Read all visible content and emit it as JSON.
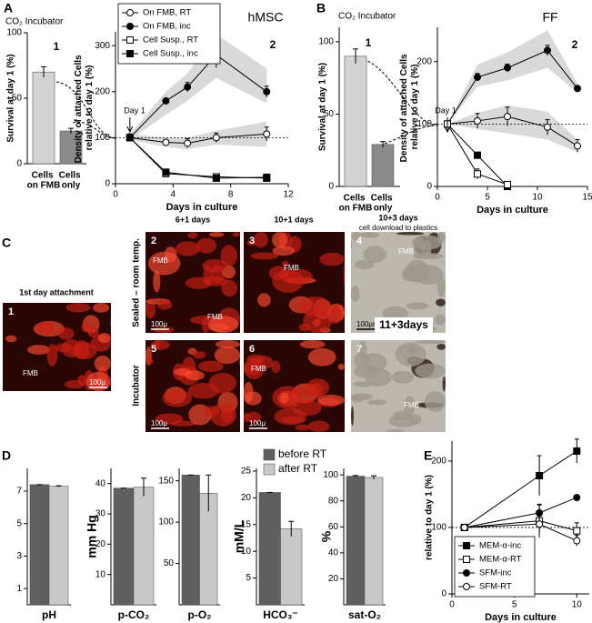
{
  "panel_labels": [
    "A",
    "B",
    "C",
    "D",
    "E"
  ],
  "chart_data": [
    {
      "type": "bar",
      "title": "CO₂ Incubator",
      "label": "1",
      "categories": [
        "Cells on FMB",
        "Cells only"
      ],
      "values": [
        70,
        25
      ],
      "errors": [
        4,
        2
      ],
      "colors": [
        "#d3d3d3",
        "#8a8a8a"
      ],
      "ylabel": "Survival at day 1 (%)",
      "ylim": [
        0,
        100
      ],
      "yticks": [
        0,
        50,
        100
      ]
    },
    {
      "type": "line",
      "title": "hMSC",
      "label": "2",
      "annotation": "Day 1",
      "xlabel": "Days in culture",
      "ylabel": "Density of attached Cells relative to day 1 (%)",
      "xlim": [
        0,
        12
      ],
      "xticks": [
        0,
        4,
        8,
        12
      ],
      "ylim": [
        0,
        330
      ],
      "yticks": [
        0,
        100,
        200,
        300
      ],
      "reference_line": 100,
      "legend": "top-left",
      "band_color": "#d9d9d9",
      "series": [
        {
          "name": "On FMB, RT",
          "marker": "open-circle",
          "color": "#000000",
          "x": [
            1,
            3.5,
            5,
            7,
            10.5
          ],
          "values": [
            100,
            90,
            88,
            100,
            108
          ],
          "errors": [
            8,
            5,
            10,
            10,
            15
          ],
          "band_low": [
            95,
            80,
            75,
            85,
            80
          ],
          "band_high": [
            108,
            100,
            100,
            115,
            135
          ]
        },
        {
          "name": "On FMB, inc",
          "marker": "filled-circle",
          "color": "#000000",
          "x": [
            1,
            3.5,
            5,
            7,
            10.5
          ],
          "values": [
            100,
            180,
            210,
            280,
            200
          ],
          "errors": [
            8,
            5,
            10,
            28,
            12
          ],
          "band_low": [
            95,
            150,
            180,
            230,
            175
          ],
          "band_high": [
            108,
            200,
            240,
            325,
            250
          ]
        },
        {
          "name": "Cell Susp., RT",
          "marker": "open-square",
          "color": "#000000",
          "x": [
            1,
            3.5,
            7,
            10.5
          ],
          "values": [
            100,
            22,
            15,
            12
          ],
          "errors": [
            8,
            3,
            3,
            3
          ]
        },
        {
          "name": "Cell Susp., inc",
          "marker": "filled-square",
          "color": "#000000",
          "x": [
            1,
            3.5,
            7,
            10.5
          ],
          "values": [
            100,
            25,
            12,
            14
          ],
          "errors": [
            8,
            3,
            3,
            3
          ]
        }
      ]
    },
    {
      "type": "bar",
      "title": "CO₂ Incubator",
      "label": "1",
      "categories": [
        "Cells on FMB",
        "Cells only"
      ],
      "values": [
        90,
        29
      ],
      "errors": [
        5,
        2
      ],
      "colors": [
        "#d3d3d3",
        "#8a8a8a"
      ],
      "ylabel": "Survival at day 1 (%)",
      "ylim": [
        0,
        110
      ],
      "yticks": [
        0,
        50,
        100
      ]
    },
    {
      "type": "line",
      "title": "FF",
      "label": "2",
      "annotation": "Day 1",
      "xlabel": "Days in culture",
      "ylabel": "Density of attached Cells relative to day 1 (%)",
      "xlim": [
        0,
        15
      ],
      "xticks": [
        0,
        5,
        10,
        15
      ],
      "ylim": [
        0,
        255
      ],
      "yticks": [
        0,
        100,
        200
      ],
      "reference_line": 100,
      "band_color": "#d9d9d9",
      "series": [
        {
          "marker": "filled-circle",
          "color": "#000000",
          "x": [
            1,
            4,
            7,
            11,
            14
          ],
          "values": [
            100,
            175,
            190,
            218,
            157
          ],
          "errors": [
            3,
            6,
            6,
            8,
            4
          ],
          "band_low": [
            100,
            160,
            170,
            190,
            150
          ],
          "band_high": [
            100,
            195,
            215,
            250,
            165
          ]
        },
        {
          "marker": "open-circle",
          "color": "#000000",
          "x": [
            1,
            4,
            7,
            11,
            14
          ],
          "values": [
            100,
            105,
            112,
            95,
            65
          ],
          "errors": [
            3,
            12,
            15,
            12,
            10
          ],
          "band_low": [
            100,
            92,
            85,
            75,
            55
          ],
          "band_high": [
            100,
            118,
            130,
            120,
            75
          ]
        },
        {
          "marker": "filled-square",
          "color": "#000000",
          "x": [
            1,
            4,
            7
          ],
          "values": [
            100,
            50,
            0
          ],
          "errors": [
            3,
            5,
            0
          ]
        },
        {
          "marker": "open-square",
          "color": "#000000",
          "x": [
            1,
            4,
            7
          ],
          "values": [
            100,
            20,
            3
          ],
          "errors": [
            3,
            8,
            2
          ]
        }
      ]
    },
    {
      "type": "bar",
      "xlabel": "pH",
      "categories": [
        null,
        null
      ],
      "values": [
        7.4,
        7.3
      ],
      "errors": [
        0,
        0.03
      ],
      "colors": [
        "#5f5f5f",
        "#c8c8c8"
      ],
      "ylim": [
        0,
        8.4
      ],
      "yticks": [
        1,
        3,
        5,
        7
      ]
    },
    {
      "type": "bar",
      "xlabel": "p-CO₂",
      "ylabel": "mm Hg",
      "categories": [
        null,
        null
      ],
      "values": [
        38.5,
        38.8
      ],
      "errors": [
        0,
        3
      ],
      "colors": [
        "#5f5f5f",
        "#c8c8c8"
      ],
      "ylim": [
        0,
        45
      ],
      "yticks": [
        10,
        20,
        30,
        40
      ]
    },
    {
      "type": "bar",
      "xlabel": "p-O₂",
      "categories": [
        null,
        null
      ],
      "values": [
        157,
        135
      ],
      "errors": [
        0,
        22
      ],
      "colors": [
        "#5f5f5f",
        "#c8c8c8"
      ],
      "ylim": [
        0,
        165
      ],
      "yticks": [
        50,
        100,
        150
      ]
    },
    {
      "type": "bar",
      "xlabel": "HCO₃⁻",
      "ylabel": "mM/L",
      "categories": [
        null,
        null
      ],
      "values": [
        21,
        14.2
      ],
      "errors": [
        0,
        1.4
      ],
      "colors": [
        "#5f5f5f",
        "#c8c8c8"
      ],
      "ylim": [
        0,
        25.5
      ],
      "yticks": [
        5,
        10,
        15,
        20,
        25
      ]
    },
    {
      "type": "bar",
      "xlabel": "sat-O₂",
      "ylabel": "%",
      "categories": [
        null,
        null
      ],
      "values": [
        99,
        98
      ],
      "errors": [
        0.5,
        1.3
      ],
      "colors": [
        "#5f5f5f",
        "#c8c8c8"
      ],
      "ylim": [
        0,
        105
      ],
      "yticks": [
        20,
        40,
        60,
        80,
        100
      ]
    },
    {
      "type": "line",
      "xlabel": "Days in culture",
      "ylabel": "relative to day 1 (%)",
      "xlim": [
        0,
        11
      ],
      "xticks": [
        0,
        5,
        10
      ],
      "ylim": [
        0,
        230
      ],
      "yticks": [
        0,
        100,
        200
      ],
      "reference_line": 100,
      "legend": "bottom-left",
      "series": [
        {
          "name": "MEM-α-inc",
          "marker": "filled-square",
          "color": "#000000",
          "x": [
            1,
            7,
            10
          ],
          "values": [
            100,
            178,
            215
          ],
          "errors": [
            0,
            30,
            18
          ]
        },
        {
          "name": "MEM-α-RT",
          "marker": "open-square",
          "color": "#000000",
          "x": [
            1,
            7,
            10
          ],
          "values": [
            100,
            110,
            95
          ],
          "errors": [
            0,
            25,
            12
          ]
        },
        {
          "name": "SFM-inc",
          "marker": "filled-circle",
          "color": "#000000",
          "x": [
            1,
            7,
            10
          ],
          "values": [
            100,
            122,
            145
          ],
          "errors": [
            0,
            12,
            0
          ]
        },
        {
          "name": "SFM-RT",
          "marker": "open-circle",
          "color": "#000000",
          "x": [
            1,
            7,
            10
          ],
          "values": [
            100,
            105,
            80
          ],
          "errors": [
            0,
            12,
            8
          ]
        }
      ]
    }
  ],
  "panel_d_legend": {
    "names": [
      "before RT",
      "after RT"
    ],
    "colors": [
      "#5f5f5f",
      "#c8c8c8"
    ]
  },
  "panel_c": {
    "first_title": "1st day attachment",
    "column_headers": [
      "6+1 days",
      "10+1 days",
      "10+3 days"
    ],
    "plastics_subtitle": "cell download to plastics",
    "row_labels": [
      "Sealed – room temp.",
      "Incubator"
    ],
    "overlay": "11+3days",
    "images": [
      {
        "number": "1",
        "labels": [
          "FMB"
        ],
        "scale": "100μ"
      },
      {
        "number": "2",
        "labels": [
          "FMB",
          "FMB"
        ],
        "scale": "100μ"
      },
      {
        "number": "3",
        "labels": [
          "FMB"
        ]
      },
      {
        "number": "4",
        "labels": [
          "FMB"
        ],
        "scale": "100μm"
      },
      {
        "number": "5",
        "scale": "100μ"
      },
      {
        "number": "6",
        "labels": [
          "FMB"
        ],
        "scale": "100μ"
      },
      {
        "number": "7",
        "labels": [
          "FMB"
        ]
      }
    ]
  }
}
